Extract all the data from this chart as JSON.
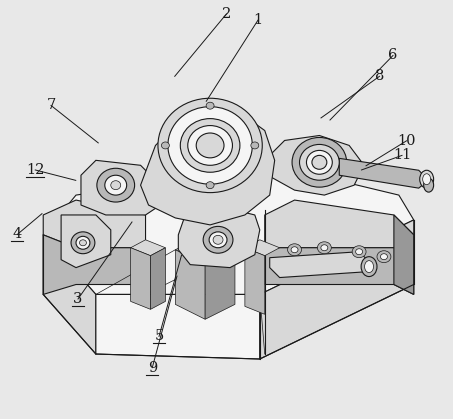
{
  "bg_color": "#e8e8e8",
  "line_color": "#1a1a1a",
  "fill_light": "#f5f5f5",
  "fill_mid": "#d8d8d8",
  "fill_dark": "#b8b8b8",
  "fill_darker": "#989898",
  "annotations": {
    "1": {
      "lpos": [
        0.57,
        0.955
      ],
      "lend": [
        0.455,
        0.76
      ],
      "underline": false
    },
    "2": {
      "lpos": [
        0.5,
        0.97
      ],
      "lend": [
        0.385,
        0.82
      ],
      "underline": false
    },
    "6": {
      "lpos": [
        0.87,
        0.87
      ],
      "lend": [
        0.73,
        0.715
      ],
      "underline": false
    },
    "7": {
      "lpos": [
        0.11,
        0.75
      ],
      "lend": [
        0.215,
        0.66
      ],
      "underline": false
    },
    "8": {
      "lpos": [
        0.84,
        0.82
      ],
      "lend": [
        0.71,
        0.72
      ],
      "underline": false
    },
    "10": {
      "lpos": [
        0.9,
        0.665
      ],
      "lend": [
        0.81,
        0.605
      ],
      "underline": false
    },
    "11": {
      "lpos": [
        0.89,
        0.63
      ],
      "lend": [
        0.8,
        0.595
      ],
      "underline": false
    },
    "12": {
      "lpos": [
        0.075,
        0.595
      ],
      "lend": [
        0.165,
        0.57
      ],
      "underline": true
    },
    "4": {
      "lpos": [
        0.035,
        0.44
      ],
      "lend": [
        0.09,
        0.49
      ],
      "underline": true
    },
    "3": {
      "lpos": [
        0.17,
        0.285
      ],
      "lend": [
        0.29,
        0.47
      ],
      "underline": true
    },
    "5": {
      "lpos": [
        0.35,
        0.195
      ],
      "lend": [
        0.4,
        0.39
      ],
      "underline": true
    },
    "9": {
      "lpos": [
        0.335,
        0.12
      ],
      "lend": [
        0.39,
        0.34
      ],
      "underline": true
    }
  },
  "font_size": 10.5
}
